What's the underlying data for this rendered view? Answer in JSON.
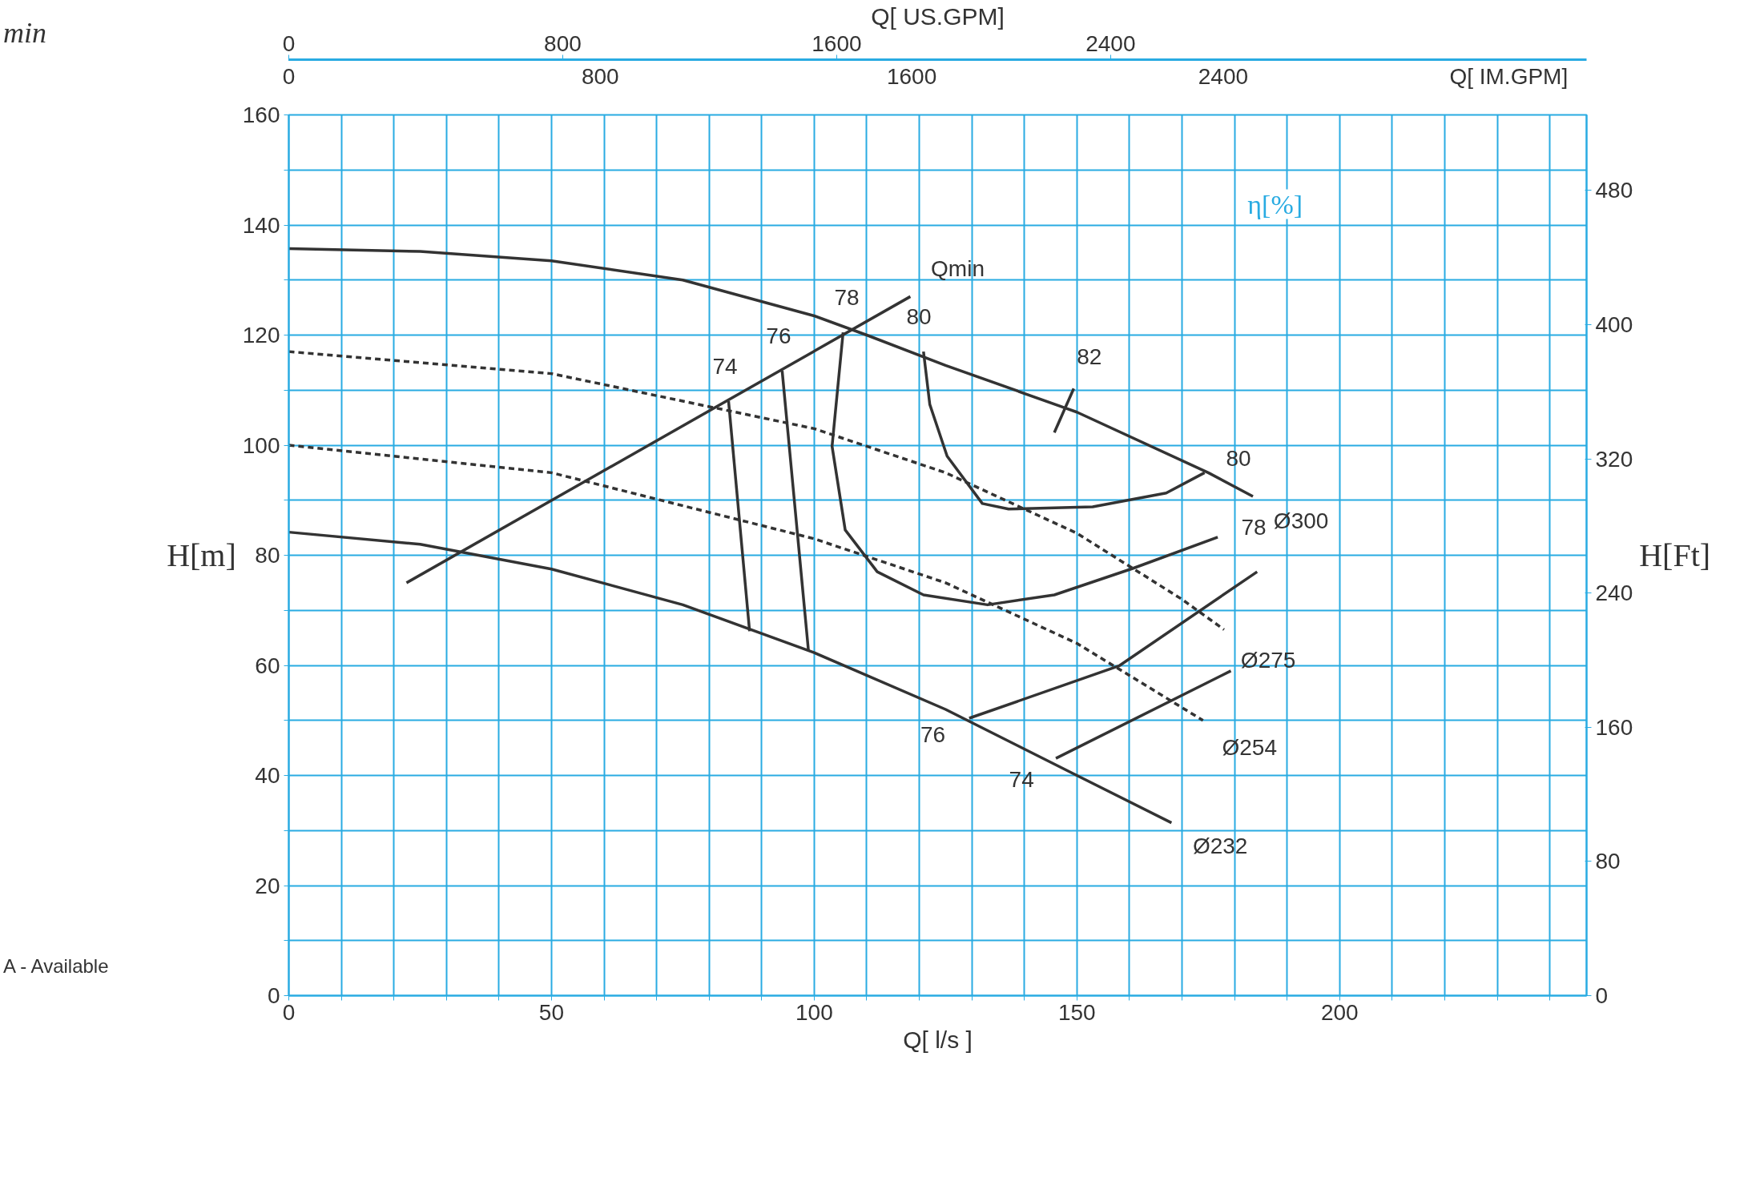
{
  "chart_data": {
    "type": "line",
    "xlabel": "Q[ l/s ]",
    "ylabel": "H[m]",
    "y2label": "H[Ft]",
    "x2label": "Q[ US.GPM]",
    "xlim": [
      0,
      247
    ],
    "ylim": [
      0,
      160
    ],
    "y2lim": [
      0,
      525
    ],
    "x2lim": [
      0,
      3790
    ],
    "xticks": [
      0,
      {
        "value": 10,
        "label": null
      },
      {
        "value": 20,
        "label": null
      },
      {
        "value": 30,
        "label": null
      },
      {
        "value": 40,
        "label": null
      },
      50,
      {
        "value": 60,
        "label": null
      },
      {
        "value": 70,
        "label": null
      },
      {
        "value": 80,
        "label": null
      },
      {
        "value": 90,
        "label": null
      },
      100,
      {
        "value": 110,
        "label": null
      },
      {
        "value": 120,
        "label": null
      },
      {
        "value": 130,
        "label": null
      },
      {
        "value": 140,
        "label": null
      },
      150,
      {
        "value": 160,
        "label": null
      },
      {
        "value": 170,
        "label": null
      },
      {
        "value": 180,
        "label": null
      },
      {
        "value": 190,
        "label": null
      },
      200,
      {
        "value": 210,
        "label": null
      },
      {
        "value": 220,
        "label": null
      },
      {
        "value": 230,
        "label": null
      },
      {
        "value": 240,
        "label": null
      }
    ],
    "yticks": [
      0,
      {
        "value": 10,
        "label": null
      },
      20,
      {
        "value": 30,
        "label": null
      },
      40,
      {
        "value": 50,
        "label": null
      },
      60,
      {
        "value": 70,
        "label": null
      },
      80,
      {
        "value": 90,
        "label": null
      },
      100,
      {
        "value": 110,
        "label": null
      },
      120,
      {
        "value": 130,
        "label": null
      },
      140,
      {
        "value": 150,
        "label": null
      },
      160
    ],
    "y2ticks": [
      0,
      80,
      160,
      240,
      320,
      400,
      480
    ],
    "x2ticks": [
      0,
      800,
      1600,
      2400
    ],
    "grid": true,
    "series": [
      {
        "color": "#333333",
        "line_style": "solid",
        "x": [
          0,
          25,
          50,
          75,
          100,
          110,
          125,
          150,
          175,
          183.5
        ],
        "values": [
          135.7,
          135.2,
          133.5,
          130,
          123.5,
          120,
          114.5,
          106,
          95,
          90.7
        ]
      },
      {
        "color": "#333333",
        "line_style": "dashed",
        "x": [
          0,
          50,
          100,
          125,
          150,
          170,
          178
        ],
        "values": [
          117,
          113,
          103,
          95,
          84,
          72,
          66.5
        ]
      },
      {
        "color": "#333333",
        "line_style": "dashed",
        "x": [
          0,
          50,
          100,
          125,
          150,
          174
        ],
        "values": [
          100,
          95,
          83,
          75,
          64,
          50
        ]
      },
      {
        "color": "#333333",
        "line_style": "solid",
        "x": [
          0,
          25,
          50,
          75,
          100,
          125,
          150,
          168
        ],
        "values": [
          84.2,
          82,
          77.5,
          71,
          62.3,
          52,
          40,
          31.4
        ]
      },
      {
        "color": "#333333",
        "line_style": "solid",
        "x": [
          22.4,
          118.3
        ],
        "values": [
          75,
          127
        ]
      },
      {
        "color": "#333333",
        "line_style": "solid",
        "x": [
          83.7,
          87.7
        ],
        "values": [
          108,
          66.2
        ]
      },
      {
        "color": "#333333",
        "line_style": "solid",
        "x": [
          93.9,
          98.9
        ],
        "values": [
          113.5,
          62.7
        ]
      },
      {
        "color": "#333333",
        "line_style": "solid",
        "x": [
          105.5,
          103.4,
          105.9,
          112,
          120.8,
          133,
          145.7,
          160.6,
          176.8
        ],
        "values": [
          120.5,
          99.8,
          84.6,
          77,
          72.8,
          71,
          72.8,
          77.6,
          83.3
        ]
      },
      {
        "color": "#333333",
        "line_style": "solid",
        "x": [
          120.8,
          122,
          125.3,
          132,
          137,
          153,
          167,
          174.3
        ],
        "values": [
          117,
          107.4,
          98,
          89.4,
          88.4,
          88.8,
          91.3,
          95
        ]
      },
      {
        "color": "#333333",
        "line_style": "solid",
        "x": [
          149.4,
          145.7
        ],
        "values": [
          110.3,
          102.3
        ]
      },
      {
        "color": "#333333",
        "line_style": "solid",
        "x": [
          129.5,
          158,
          184.3
        ],
        "values": [
          50.4,
          59.9,
          77
        ]
      },
      {
        "color": "#333333",
        "line_style": "solid",
        "x": [
          146,
          179.3
        ],
        "values": [
          43.1,
          59
        ]
      }
    ],
    "annotations": [
      "min",
      "A - Available",
      "η[%]",
      "0",
      "800",
      "1600",
      "2400",
      "Q[ IM.GPM]",
      {
        "text": "Ø300",
        "x": 183.5,
        "y": 90.7
      },
      {
        "text": "Ø275",
        "x": 178,
        "y": 66.5
      },
      {
        "text": "Ø254",
        "x": 174,
        "y": 50
      },
      {
        "text": "Ø232",
        "x": 168,
        "y": 31.4
      },
      {
        "text": "Qmin",
        "x": 118.3,
        "y": 127
      },
      {
        "text": "78",
        "x": 105.5,
        "y": 120.5
      },
      {
        "text": "80",
        "x": 120.8,
        "y": 117
      },
      {
        "text": "82",
        "x": 149.4,
        "y": 110.3
      },
      {
        "text": "76",
        "x": 93.9,
        "y": 113.5
      },
      {
        "text": "74",
        "x": 83.7,
        "y": 108
      },
      {
        "text": "80",
        "x": 174.3,
        "y": 95
      },
      {
        "text": "78",
        "x": 176.8,
        "y": 83.3
      },
      {
        "text": "76",
        "x": 129.5,
        "y": 50.4
      },
      {
        "text": "74",
        "x": 146,
        "y": 43.1
      }
    ]
  }
}
